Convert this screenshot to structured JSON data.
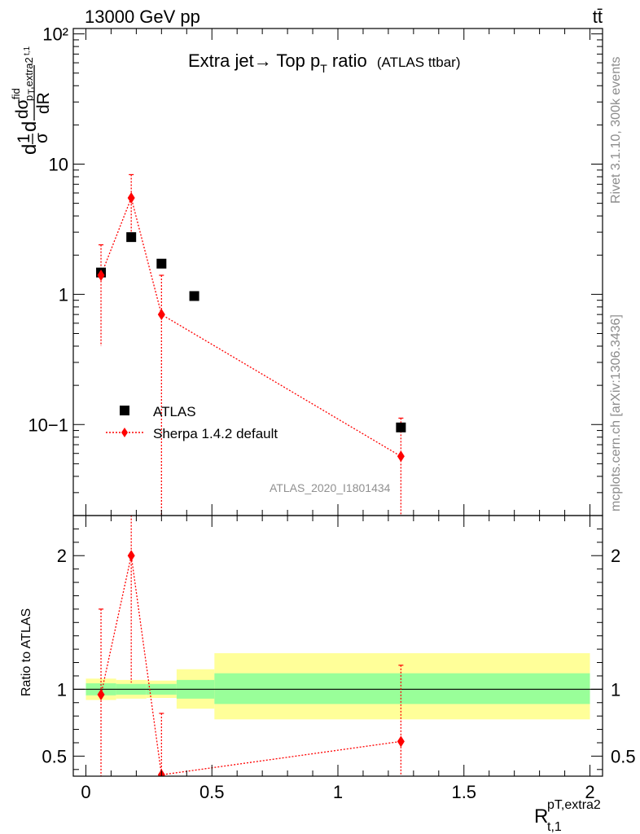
{
  "header": {
    "energy_label": "13000 GeV pp",
    "process_label": "tt̄"
  },
  "side_labels": {
    "rivet": "Rivet 3.1.10,  300k events",
    "mcplots": "mcplots.cern.ch [arXiv:1306.3436]"
  },
  "analysis_id": "ATLAS_2020_I1801434",
  "chart_data": [
    {
      "type": "scatter",
      "panel": "main",
      "title": "Extra jet→ Top p",
      "title_sub": "T",
      "title_tail": " ratio",
      "title_note": "(ATLAS ttbar)",
      "ylabel": "d(1/σ dσ/dR)",
      "yscale": "log",
      "ylim": [
        0.02,
        110
      ],
      "xlim": [
        -0.05,
        2.05
      ],
      "ytick_labels": [
        "10−1",
        "1",
        "10",
        "10²"
      ],
      "legend_position": "center-left",
      "series": [
        {
          "name": "ATLAS",
          "color": "#000000",
          "marker": "square",
          "points": [
            {
              "x": 0.06,
              "y": 1.47
            },
            {
              "x": 0.18,
              "y": 2.75
            },
            {
              "x": 0.3,
              "y": 1.72
            },
            {
              "x": 0.43,
              "y": 0.97
            },
            {
              "x": 1.25,
              "y": 0.095
            }
          ]
        },
        {
          "name": "Sherpa 1.4.2 default",
          "color": "#ff0000",
          "marker": "diamond",
          "line": "dotted",
          "points": [
            {
              "x": 0.06,
              "y": 1.4,
              "ylo": 0.4,
              "yhi": 2.4
            },
            {
              "x": 0.18,
              "y": 5.5,
              "ylo": 2.9,
              "yhi": 8.3
            },
            {
              "x": 0.3,
              "y": 0.7,
              "ylo": 0.001,
              "yhi": 1.4
            },
            {
              "x": 1.25,
              "y": 0.057,
              "ylo": 0.001,
              "yhi": 0.112
            }
          ]
        }
      ]
    },
    {
      "type": "line",
      "panel": "ratio",
      "ylabel": "Ratio to ATLAS",
      "xlabel": "R",
      "xlabel_sup": "pT,extra2",
      "xlabel_sub": "t,1",
      "ylim": [
        0.35,
        2.3
      ],
      "xlim": [
        -0.05,
        2.05
      ],
      "xtick_labels": [
        "0",
        "0.5",
        "1",
        "1.5",
        "2"
      ],
      "ytick_labels": [
        "0.5",
        "1",
        "2"
      ],
      "reference_line": 1,
      "uncertainty_bands": [
        {
          "xlo": 0.0,
          "xhi": 0.12,
          "stat_lo": 0.955,
          "stat_hi": 1.045,
          "tot_lo": 0.92,
          "tot_hi": 1.08
        },
        {
          "xlo": 0.12,
          "xhi": 0.24,
          "stat_lo": 0.96,
          "stat_hi": 1.04,
          "tot_lo": 0.93,
          "tot_hi": 1.07
        },
        {
          "xlo": 0.24,
          "xhi": 0.36,
          "stat_lo": 0.96,
          "stat_hi": 1.04,
          "tot_lo": 0.935,
          "tot_hi": 1.065
        },
        {
          "xlo": 0.36,
          "xhi": 0.51,
          "stat_lo": 0.93,
          "stat_hi": 1.07,
          "tot_lo": 0.855,
          "tot_hi": 1.15
        },
        {
          "xlo": 0.51,
          "xhi": 2.0,
          "stat_lo": 0.89,
          "stat_hi": 1.12,
          "tot_lo": 0.775,
          "tot_hi": 1.27
        }
      ],
      "band_colors": {
        "stat": "#99ff99",
        "total": "#ffff99"
      },
      "series": [
        {
          "name": "Sherpa 1.4.2 default",
          "color": "#ff0000",
          "points": [
            {
              "x": 0.06,
              "y": 0.96,
              "ylo": 0.3,
              "yhi": 1.6
            },
            {
              "x": 0.18,
              "y": 2.0,
              "ylo": 1.05,
              "yhi": 2.4
            },
            {
              "x": 0.3,
              "y": 0.36,
              "ylo": 0.3,
              "yhi": 0.82
            },
            {
              "x": 1.25,
              "y": 0.61,
              "ylo": 0.3,
              "yhi": 1.18
            }
          ]
        }
      ]
    }
  ]
}
